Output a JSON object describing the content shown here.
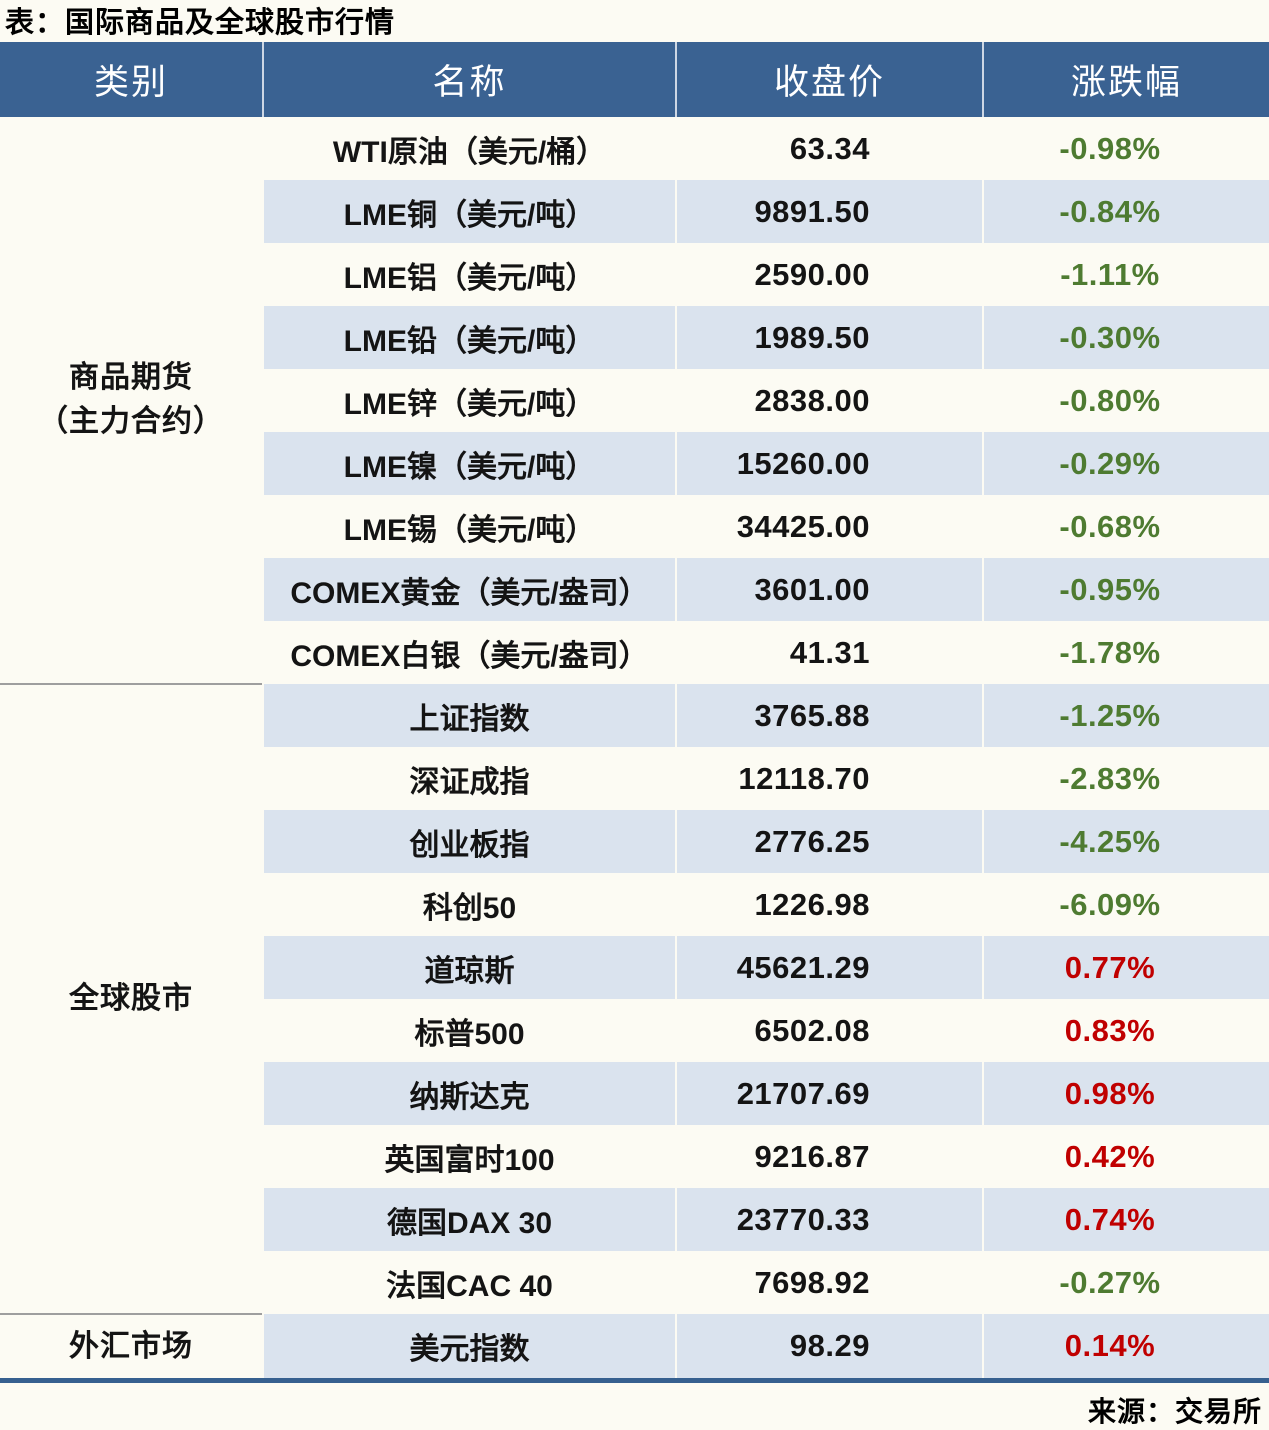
{
  "title": "表：国际商品及全球股市行情",
  "source": "来源：交易所",
  "columns": [
    "类别",
    "名称",
    "收盘价",
    "涨跌幅"
  ],
  "colors": {
    "header_bg": "#3a6292",
    "row_alt_bg": "#dae3ee",
    "row_base_bg": "#fcfbf3",
    "up_red": "#c00000",
    "down_green": "#4e7b31",
    "table_bottom_border": "#36608f"
  },
  "sections": [
    {
      "category_lines": [
        "商品期货",
        "（主力合约）"
      ],
      "rows": [
        {
          "name": "WTI原油（美元/桶）",
          "close": "63.34",
          "change": "-0.98%"
        },
        {
          "name": "LME铜（美元/吨）",
          "close": "9891.50",
          "change": "-0.84%"
        },
        {
          "name": "LME铝（美元/吨）",
          "close": "2590.00",
          "change": "-1.11%"
        },
        {
          "name": "LME铅（美元/吨）",
          "close": "1989.50",
          "change": "-0.30%"
        },
        {
          "name": "LME锌（美元/吨）",
          "close": "2838.00",
          "change": "-0.80%"
        },
        {
          "name": "LME镍（美元/吨）",
          "close": "15260.00",
          "change": "-0.29%"
        },
        {
          "name": "LME锡（美元/吨）",
          "close": "34425.00",
          "change": "-0.68%"
        },
        {
          "name": "COMEX黄金（美元/盎司）",
          "close": "3601.00",
          "change": "-0.95%"
        },
        {
          "name": "COMEX白银（美元/盎司）",
          "close": "41.31",
          "change": "-1.78%"
        }
      ]
    },
    {
      "category_lines": [
        "全球股市"
      ],
      "rows": [
        {
          "name": "上证指数",
          "close": "3765.88",
          "change": "-1.25%"
        },
        {
          "name": "深证成指",
          "close": "12118.70",
          "change": "-2.83%"
        },
        {
          "name": "创业板指",
          "close": "2776.25",
          "change": "-4.25%"
        },
        {
          "name": "科创50",
          "close": "1226.98",
          "change": "-6.09%"
        },
        {
          "name": "道琼斯",
          "close": "45621.29",
          "change": "0.77%"
        },
        {
          "name": "标普500",
          "close": "6502.08",
          "change": "0.83%"
        },
        {
          "name": "纳斯达克",
          "close": "21707.69",
          "change": "0.98%"
        },
        {
          "name": "英国富时100",
          "close": "9216.87",
          "change": "0.42%"
        },
        {
          "name": "德国DAX 30",
          "close": "23770.33",
          "change": "0.74%"
        },
        {
          "name": "法国CAC 40",
          "close": "7698.92",
          "change": "-0.27%"
        }
      ]
    },
    {
      "category_lines": [
        "外汇市场"
      ],
      "rows": [
        {
          "name": "美元指数",
          "close": "98.29",
          "change": "0.14%"
        }
      ]
    }
  ]
}
